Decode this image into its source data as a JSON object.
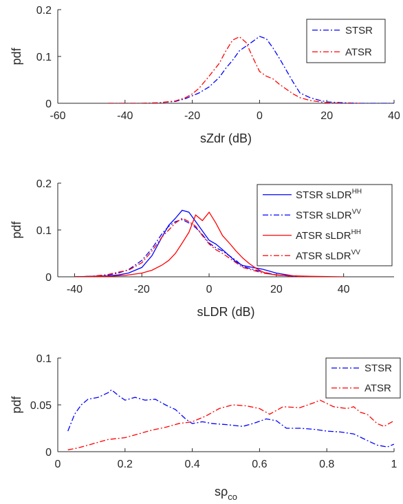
{
  "chart_data": [
    {
      "type": "line",
      "xlabel": "sZdr (dB)",
      "ylabel": "pdf",
      "xlim": [
        -60,
        40
      ],
      "ylim": [
        0,
        0.2
      ],
      "xticks": [
        -60,
        -40,
        -20,
        0,
        20,
        40
      ],
      "yticks": [
        0,
        0.1,
        0.2
      ],
      "ytick_labels": [
        "0",
        "0.1",
        "0.2"
      ],
      "legend": "top-right",
      "series": [
        {
          "name": "STSR",
          "color": "#0000ff",
          "dash": "dashdot",
          "x": [
            -45,
            -40,
            -35,
            -30,
            -25,
            -22,
            -20,
            -18,
            -15,
            -12,
            -10,
            -8,
            -6,
            -4,
            -2,
            0,
            2,
            4,
            6,
            8,
            10,
            12,
            15,
            18,
            20,
            25,
            30,
            35,
            40
          ],
          "y": [
            0,
            0,
            0,
            0.001,
            0.004,
            0.01,
            0.016,
            0.022,
            0.035,
            0.055,
            0.075,
            0.092,
            0.112,
            0.122,
            0.132,
            0.143,
            0.138,
            0.118,
            0.095,
            0.07,
            0.045,
            0.022,
            0.012,
            0.006,
            0.003,
            0.001,
            0,
            0,
            0
          ]
        },
        {
          "name": "ATSR",
          "color": "#ff0000",
          "dash": "dashdot",
          "x": [
            -45,
            -40,
            -35,
            -30,
            -25,
            -22,
            -20,
            -18,
            -15,
            -12,
            -10,
            -8,
            -6,
            -4,
            -2,
            0,
            2,
            4,
            6,
            8,
            10,
            12,
            15,
            18,
            20,
            25,
            30
          ],
          "y": [
            0,
            0,
            0,
            0.001,
            0.005,
            0.012,
            0.02,
            0.032,
            0.058,
            0.085,
            0.112,
            0.135,
            0.142,
            0.13,
            0.098,
            0.068,
            0.058,
            0.052,
            0.04,
            0.03,
            0.02,
            0.012,
            0.006,
            0.003,
            0.001,
            0,
            0
          ]
        }
      ]
    },
    {
      "type": "line",
      "xlabel": "sLDR (dB)",
      "ylabel": "pdf",
      "xlim": [
        -45,
        55
      ],
      "ylim": [
        0,
        0.2
      ],
      "xticks": [
        -40,
        -20,
        0,
        20,
        40
      ],
      "yticks": [
        0,
        0.1,
        0.2
      ],
      "ytick_labels": [
        "0",
        "0.1",
        "0.2"
      ],
      "legend": "top-right",
      "series": [
        {
          "name": "STSR sLDR",
          "sup": "HH",
          "color": "#0000ff",
          "dash": "solid",
          "x": [
            -40,
            -35,
            -30,
            -27,
            -24,
            -20,
            -17,
            -14,
            -12,
            -10,
            -8,
            -6,
            -4,
            -2,
            0,
            2,
            4,
            6,
            8,
            10,
            13,
            16,
            20,
            25,
            30
          ],
          "y": [
            0,
            0.001,
            0.002,
            0.004,
            0.008,
            0.02,
            0.045,
            0.085,
            0.11,
            0.125,
            0.142,
            0.138,
            0.118,
            0.098,
            0.078,
            0.07,
            0.058,
            0.045,
            0.032,
            0.024,
            0.02,
            0.016,
            0.008,
            0.002,
            0
          ]
        },
        {
          "name": "STSR sLDR",
          "sup": "VV",
          "color": "#0000ff",
          "dash": "dashdot",
          "x": [
            -40,
            -35,
            -30,
            -27,
            -24,
            -20,
            -17,
            -14,
            -12,
            -10,
            -8,
            -6,
            -4,
            -2,
            0,
            2,
            4,
            6,
            8,
            10,
            13,
            16,
            20,
            25,
            30
          ],
          "y": [
            0,
            0.001,
            0.004,
            0.008,
            0.015,
            0.035,
            0.06,
            0.092,
            0.108,
            0.118,
            0.122,
            0.115,
            0.105,
            0.09,
            0.072,
            0.062,
            0.055,
            0.045,
            0.035,
            0.022,
            0.016,
            0.01,
            0.004,
            0.001,
            0
          ]
        },
        {
          "name": "ATSR sLDR",
          "sup": "HH",
          "color": "#ff0000",
          "dash": "solid",
          "x": [
            -40,
            -30,
            -25,
            -20,
            -17,
            -14,
            -12,
            -10,
            -8,
            -6,
            -4,
            -2,
            0,
            2,
            4,
            6,
            8,
            10,
            12,
            14,
            16,
            18,
            20,
            25,
            30,
            40
          ],
          "y": [
            0,
            0.001,
            0.003,
            0.008,
            0.014,
            0.025,
            0.035,
            0.05,
            0.072,
            0.095,
            0.132,
            0.12,
            0.138,
            0.115,
            0.088,
            0.072,
            0.055,
            0.04,
            0.028,
            0.018,
            0.01,
            0.006,
            0.004,
            0.002,
            0.001,
            0
          ]
        },
        {
          "name": "ATSR sLDR",
          "sup": "VV",
          "color": "#ff0000",
          "dash": "dashdot",
          "x": [
            -40,
            -35,
            -30,
            -27,
            -24,
            -20,
            -17,
            -14,
            -12,
            -10,
            -8,
            -6,
            -4,
            -2,
            0,
            2,
            4,
            6,
            8,
            10,
            13,
            16,
            20,
            25,
            30
          ],
          "y": [
            0,
            0.001,
            0.005,
            0.01,
            0.014,
            0.03,
            0.055,
            0.085,
            0.1,
            0.115,
            0.125,
            0.118,
            0.108,
            0.088,
            0.07,
            0.058,
            0.05,
            0.04,
            0.03,
            0.02,
            0.014,
            0.008,
            0.004,
            0.001,
            0
          ]
        }
      ]
    },
    {
      "type": "line",
      "xlabel": "sρ",
      "xlabel_sub": "co",
      "ylabel": "pdf",
      "xlim": [
        0,
        1
      ],
      "ylim": [
        0,
        0.1
      ],
      "xticks": [
        0,
        0.2,
        0.4,
        0.6,
        0.8,
        1
      ],
      "yticks": [
        0,
        0.05,
        0.1
      ],
      "ytick_labels": [
        "0",
        "0.05",
        "0.1"
      ],
      "legend": "top-right",
      "series": [
        {
          "name": "STSR",
          "color": "#0000ff",
          "dash": "dashdot",
          "x": [
            0.03,
            0.05,
            0.07,
            0.09,
            0.12,
            0.15,
            0.16,
            0.18,
            0.2,
            0.23,
            0.26,
            0.29,
            0.32,
            0.35,
            0.38,
            0.4,
            0.43,
            0.46,
            0.5,
            0.55,
            0.58,
            0.62,
            0.65,
            0.68,
            0.72,
            0.76,
            0.8,
            0.84,
            0.88,
            0.92,
            0.95,
            0.98,
            1.0
          ],
          "y": [
            0.022,
            0.04,
            0.05,
            0.056,
            0.058,
            0.063,
            0.066,
            0.06,
            0.055,
            0.058,
            0.055,
            0.056,
            0.05,
            0.045,
            0.035,
            0.03,
            0.032,
            0.03,
            0.029,
            0.027,
            0.03,
            0.035,
            0.033,
            0.025,
            0.025,
            0.024,
            0.022,
            0.021,
            0.019,
            0.012,
            0.007,
            0.005,
            0.008
          ]
        },
        {
          "name": "ATSR",
          "color": "#ff0000",
          "dash": "dashdot",
          "x": [
            0.03,
            0.06,
            0.1,
            0.15,
            0.2,
            0.25,
            0.28,
            0.32,
            0.36,
            0.4,
            0.44,
            0.48,
            0.52,
            0.56,
            0.6,
            0.63,
            0.67,
            0.72,
            0.76,
            0.78,
            0.82,
            0.86,
            0.88,
            0.9,
            0.92,
            0.95,
            0.97,
            1.0
          ],
          "y": [
            0.002,
            0.004,
            0.008,
            0.013,
            0.015,
            0.02,
            0.023,
            0.026,
            0.03,
            0.032,
            0.038,
            0.046,
            0.05,
            0.049,
            0.046,
            0.04,
            0.048,
            0.047,
            0.052,
            0.055,
            0.048,
            0.046,
            0.048,
            0.042,
            0.04,
            0.03,
            0.027,
            0.033
          ]
        }
      ]
    }
  ]
}
